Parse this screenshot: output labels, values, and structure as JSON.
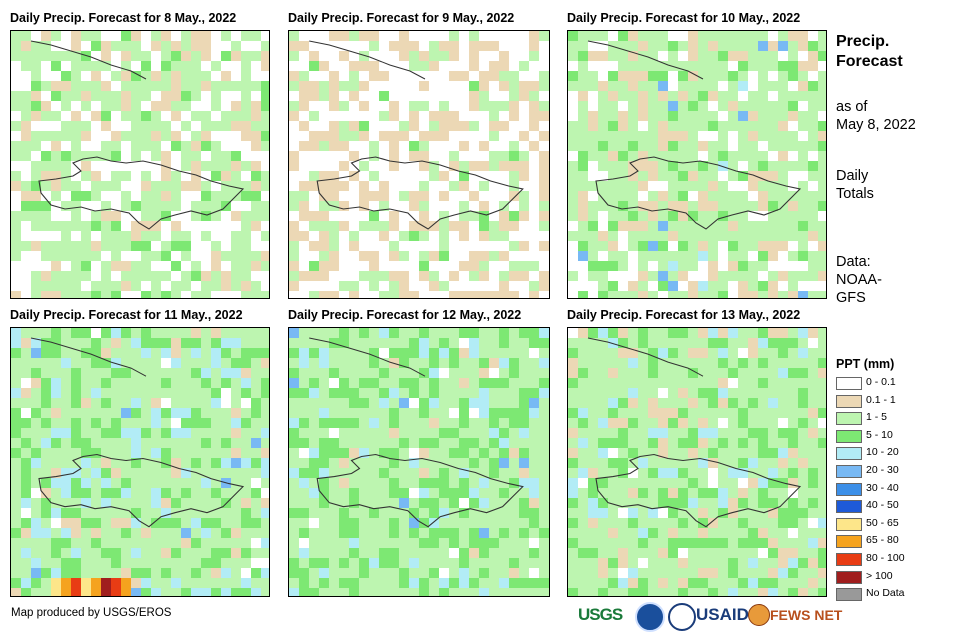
{
  "panels": [
    {
      "title": "Daily Precip. Forecast for 8 May., 2022",
      "date": "8 May., 2022"
    },
    {
      "title": "Daily Precip. Forecast for 9 May., 2022",
      "date": "9 May., 2022"
    },
    {
      "title": "Daily Precip. Forecast for 10 May., 2022",
      "date": "10 May., 2022"
    },
    {
      "title": "Daily Precip. Forecast for 11 May., 2022",
      "date": "11 May., 2022"
    },
    {
      "title": "Daily Precip. Forecast for 12 May., 2022",
      "date": "12 May., 2022"
    },
    {
      "title": "Daily Precip. Forecast for 13 May., 2022",
      "date": "13 May., 2022"
    }
  ],
  "side": {
    "title_line1": "Precip.",
    "title_line2": "Forecast",
    "asof_line1": "as of",
    "asof_line2": "May 8, 2022",
    "daily_line1": "Daily",
    "daily_line2": "Totals",
    "data_line1": "Data:",
    "data_line2": "NOAA-",
    "data_line3": "GFS"
  },
  "legend": {
    "title": "PPT (mm)",
    "items": [
      {
        "label": "0 - 0.1",
        "color": "#ffffff"
      },
      {
        "label": "0.1 - 1",
        "color": "#ecd8b5"
      },
      {
        "label": "1 - 5",
        "color": "#bdf5b0"
      },
      {
        "label": "5 - 10",
        "color": "#7de873"
      },
      {
        "label": "10 - 20",
        "color": "#b2ecf6"
      },
      {
        "label": "20 - 30",
        "color": "#78b9f4"
      },
      {
        "label": "30 - 40",
        "color": "#3c8fe8"
      },
      {
        "label": "40 - 50",
        "color": "#1e5ad8"
      },
      {
        "label": "50 - 65",
        "color": "#fde68a"
      },
      {
        "label": "65 - 80",
        "color": "#f5a31e"
      },
      {
        "label": "80 - 100",
        "color": "#e83c14"
      },
      {
        "label": "> 100",
        "color": "#a01e1e"
      },
      {
        "label": "No Data",
        "color": "#999999"
      }
    ]
  },
  "credit": "Map produced by USGS/EROS",
  "logos": {
    "usgs": "USGS",
    "usaid": "USAID",
    "fewsnet": "FEWS NET"
  }
}
